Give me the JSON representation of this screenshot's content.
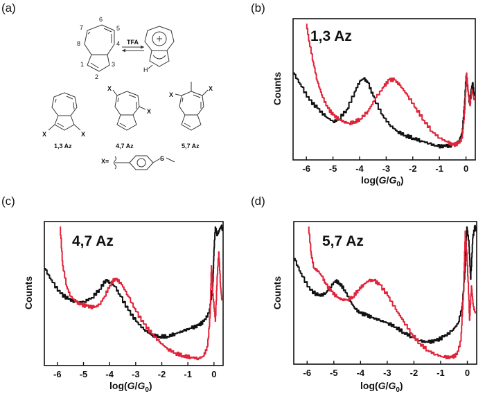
{
  "panel_labels": [
    "(a)",
    "(b)",
    "(c)",
    "(d)"
  ],
  "scheme": {
    "numbers": [
      "1",
      "2",
      "3",
      "4",
      "5",
      "6",
      "7",
      "8"
    ],
    "reagent": "TFA",
    "h_label": "H",
    "x_label": "X",
    "compounds": [
      "1,3 Az",
      "4,7 Az",
      "5,7 Az"
    ],
    "x_def": "X="
  },
  "colors": {
    "black_series": "#111111",
    "red_series": "#e0243a"
  },
  "chart_data": [
    {
      "type": "line",
      "title": "1,3 Az",
      "xlabel_prefix": "log(",
      "xlabel_G": "G",
      "xlabel_slash": "/",
      "xlabel_G0": "G",
      "xlabel_sub": "0",
      "xlabel_suffix": ")",
      "ylabel": "Counts",
      "xlim": [
        -6.5,
        0.35
      ],
      "ylim": [
        0,
        1.0
      ],
      "xticks": [
        -6,
        -5,
        -4,
        -3,
        -2,
        -1,
        0
      ],
      "series": [
        {
          "color": "black",
          "points": [
            [
              -6.5,
              0.62
            ],
            [
              -6.2,
              0.52
            ],
            [
              -5.9,
              0.42
            ],
            [
              -5.6,
              0.36
            ],
            [
              -5.3,
              0.3
            ],
            [
              -5.0,
              0.26
            ],
            [
              -4.8,
              0.28
            ],
            [
              -4.5,
              0.35
            ],
            [
              -4.2,
              0.48
            ],
            [
              -4.0,
              0.56
            ],
            [
              -3.85,
              0.58
            ],
            [
              -3.7,
              0.55
            ],
            [
              -3.5,
              0.45
            ],
            [
              -3.2,
              0.32
            ],
            [
              -2.9,
              0.24
            ],
            [
              -2.6,
              0.19
            ],
            [
              -2.3,
              0.16
            ],
            [
              -2.0,
              0.14
            ],
            [
              -1.7,
              0.12
            ],
            [
              -1.4,
              0.1
            ],
            [
              -1.1,
              0.08
            ],
            [
              -0.8,
              0.08
            ],
            [
              -0.5,
              0.09
            ],
            [
              -0.3,
              0.11
            ],
            [
              -0.15,
              0.18
            ],
            [
              -0.05,
              0.42
            ],
            [
              0.0,
              0.6
            ],
            [
              0.06,
              0.52
            ],
            [
              0.12,
              0.4
            ],
            [
              0.18,
              0.48
            ],
            [
              0.25,
              0.55
            ],
            [
              0.3,
              0.45
            ]
          ]
        },
        {
          "color": "red",
          "points": [
            [
              -6.0,
              0.98
            ],
            [
              -5.9,
              0.85
            ],
            [
              -5.75,
              0.7
            ],
            [
              -5.6,
              0.56
            ],
            [
              -5.4,
              0.44
            ],
            [
              -5.2,
              0.36
            ],
            [
              -5.0,
              0.31
            ],
            [
              -4.8,
              0.28
            ],
            [
              -4.6,
              0.26
            ],
            [
              -4.4,
              0.25
            ],
            [
              -4.2,
              0.26
            ],
            [
              -4.0,
              0.28
            ],
            [
              -3.7,
              0.34
            ],
            [
              -3.4,
              0.44
            ],
            [
              -3.1,
              0.52
            ],
            [
              -2.9,
              0.57
            ],
            [
              -2.7,
              0.57
            ],
            [
              -2.5,
              0.53
            ],
            [
              -2.2,
              0.45
            ],
            [
              -1.9,
              0.36
            ],
            [
              -1.6,
              0.27
            ],
            [
              -1.3,
              0.19
            ],
            [
              -1.0,
              0.14
            ],
            [
              -0.7,
              0.11
            ],
            [
              -0.5,
              0.09
            ],
            [
              -0.3,
              0.1
            ],
            [
              -0.15,
              0.14
            ],
            [
              -0.05,
              0.35
            ],
            [
              0.02,
              0.62
            ],
            [
              0.08,
              0.48
            ],
            [
              0.15,
              0.38
            ],
            [
              0.22,
              0.5
            ],
            [
              0.3,
              0.42
            ]
          ]
        }
      ]
    },
    {
      "type": "line",
      "title": "4,7 Az",
      "xlabel_prefix": "log(",
      "xlabel_G": "G",
      "xlabel_slash": "/",
      "xlabel_G0": "G",
      "xlabel_sub": "0",
      "xlabel_suffix": ")",
      "ylabel": "Counts",
      "xlim": [
        -6.5,
        0.35
      ],
      "ylim": [
        0,
        1.0
      ],
      "xticks": [
        -6,
        -5,
        -4,
        -3,
        -2,
        -1,
        0
      ],
      "series": [
        {
          "color": "black",
          "points": [
            [
              -6.5,
              0.68
            ],
            [
              -6.2,
              0.58
            ],
            [
              -5.9,
              0.5
            ],
            [
              -5.6,
              0.46
            ],
            [
              -5.3,
              0.44
            ],
            [
              -5.0,
              0.44
            ],
            [
              -4.7,
              0.47
            ],
            [
              -4.4,
              0.53
            ],
            [
              -4.15,
              0.6
            ],
            [
              -4.0,
              0.58
            ],
            [
              -3.8,
              0.55
            ],
            [
              -3.6,
              0.48
            ],
            [
              -3.3,
              0.38
            ],
            [
              -3.0,
              0.3
            ],
            [
              -2.7,
              0.24
            ],
            [
              -2.4,
              0.2
            ],
            [
              -2.1,
              0.19
            ],
            [
              -1.8,
              0.19
            ],
            [
              -1.5,
              0.21
            ],
            [
              -1.2,
              0.23
            ],
            [
              -0.9,
              0.25
            ],
            [
              -0.6,
              0.27
            ],
            [
              -0.4,
              0.3
            ],
            [
              -0.2,
              0.36
            ],
            [
              -0.05,
              0.55
            ],
            [
              0.0,
              0.82
            ],
            [
              0.05,
              0.98
            ],
            [
              0.12,
              0.92
            ],
            [
              0.2,
              0.96
            ],
            [
              0.28,
              0.99
            ],
            [
              0.33,
              0.95
            ]
          ]
        },
        {
          "color": "red",
          "points": [
            [
              -5.9,
              0.98
            ],
            [
              -5.8,
              0.7
            ],
            [
              -5.65,
              0.55
            ],
            [
              -5.5,
              0.48
            ],
            [
              -5.3,
              0.44
            ],
            [
              -5.1,
              0.42
            ],
            [
              -4.9,
              0.41
            ],
            [
              -4.6,
              0.4
            ],
            [
              -4.4,
              0.42
            ],
            [
              -4.2,
              0.48
            ],
            [
              -4.0,
              0.56
            ],
            [
              -3.8,
              0.61
            ],
            [
              -3.6,
              0.58
            ],
            [
              -3.3,
              0.48
            ],
            [
              -3.0,
              0.37
            ],
            [
              -2.7,
              0.28
            ],
            [
              -2.4,
              0.21
            ],
            [
              -2.1,
              0.15
            ],
            [
              -1.8,
              0.1
            ],
            [
              -1.5,
              0.07
            ],
            [
              -1.2,
              0.05
            ],
            [
              -0.9,
              0.04
            ],
            [
              -0.6,
              0.03
            ],
            [
              -0.4,
              0.05
            ],
            [
              -0.25,
              0.12
            ],
            [
              -0.15,
              0.35
            ],
            [
              -0.1,
              0.7
            ],
            [
              -0.05,
              0.5
            ],
            [
              0.05,
              0.3
            ],
            [
              0.12,
              0.62
            ],
            [
              0.18,
              0.8
            ],
            [
              0.25,
              0.55
            ],
            [
              0.3,
              0.45
            ]
          ]
        }
      ]
    },
    {
      "type": "line",
      "title": "5,7 Az",
      "xlabel_prefix": "log(",
      "xlabel_G": "G",
      "xlabel_slash": "/",
      "xlabel_G0": "G",
      "xlabel_sub": "0",
      "xlabel_suffix": ")",
      "ylabel": "Counts",
      "xlim": [
        -6.5,
        0.35
      ],
      "ylim": [
        0,
        1.0
      ],
      "xticks": [
        -6,
        -5,
        -4,
        -3,
        -2,
        -1,
        0
      ],
      "series": [
        {
          "color": "black",
          "points": [
            [
              -6.5,
              0.75
            ],
            [
              -6.2,
              0.62
            ],
            [
              -5.9,
              0.52
            ],
            [
              -5.6,
              0.48
            ],
            [
              -5.35,
              0.49
            ],
            [
              -5.15,
              0.54
            ],
            [
              -4.95,
              0.59
            ],
            [
              -4.8,
              0.57
            ],
            [
              -4.6,
              0.52
            ],
            [
              -4.4,
              0.44
            ],
            [
              -4.2,
              0.38
            ],
            [
              -4.0,
              0.35
            ],
            [
              -3.8,
              0.34
            ],
            [
              -3.6,
              0.32
            ],
            [
              -3.3,
              0.3
            ],
            [
              -3.0,
              0.28
            ],
            [
              -2.7,
              0.25
            ],
            [
              -2.4,
              0.21
            ],
            [
              -2.1,
              0.18
            ],
            [
              -1.8,
              0.15
            ],
            [
              -1.5,
              0.14
            ],
            [
              -1.2,
              0.15
            ],
            [
              -0.9,
              0.18
            ],
            [
              -0.6,
              0.22
            ],
            [
              -0.35,
              0.28
            ],
            [
              -0.2,
              0.4
            ],
            [
              -0.1,
              0.65
            ],
            [
              -0.02,
              0.98
            ],
            [
              0.05,
              0.88
            ],
            [
              0.12,
              0.6
            ],
            [
              0.2,
              0.9
            ],
            [
              0.28,
              0.99
            ],
            [
              0.33,
              0.95
            ]
          ]
        },
        {
          "color": "red",
          "points": [
            [
              -5.95,
              0.98
            ],
            [
              -5.85,
              0.78
            ],
            [
              -5.75,
              0.68
            ],
            [
              -5.6,
              0.66
            ],
            [
              -5.45,
              0.62
            ],
            [
              -5.3,
              0.56
            ],
            [
              -5.1,
              0.51
            ],
            [
              -4.9,
              0.47
            ],
            [
              -4.7,
              0.45
            ],
            [
              -4.5,
              0.45
            ],
            [
              -4.3,
              0.47
            ],
            [
              -4.1,
              0.52
            ],
            [
              -3.9,
              0.56
            ],
            [
              -3.7,
              0.59
            ],
            [
              -3.5,
              0.59
            ],
            [
              -3.3,
              0.56
            ],
            [
              -3.0,
              0.48
            ],
            [
              -2.7,
              0.38
            ],
            [
              -2.4,
              0.29
            ],
            [
              -2.1,
              0.2
            ],
            [
              -1.8,
              0.13
            ],
            [
              -1.5,
              0.08
            ],
            [
              -1.2,
              0.05
            ],
            [
              -0.9,
              0.03
            ],
            [
              -0.6,
              0.03
            ],
            [
              -0.4,
              0.05
            ],
            [
              -0.25,
              0.15
            ],
            [
              -0.15,
              0.5
            ],
            [
              -0.08,
              0.95
            ],
            [
              0.0,
              0.7
            ],
            [
              0.08,
              0.3
            ],
            [
              0.15,
              0.55
            ],
            [
              0.22,
              0.4
            ],
            [
              0.3,
              0.35
            ]
          ]
        }
      ]
    }
  ]
}
